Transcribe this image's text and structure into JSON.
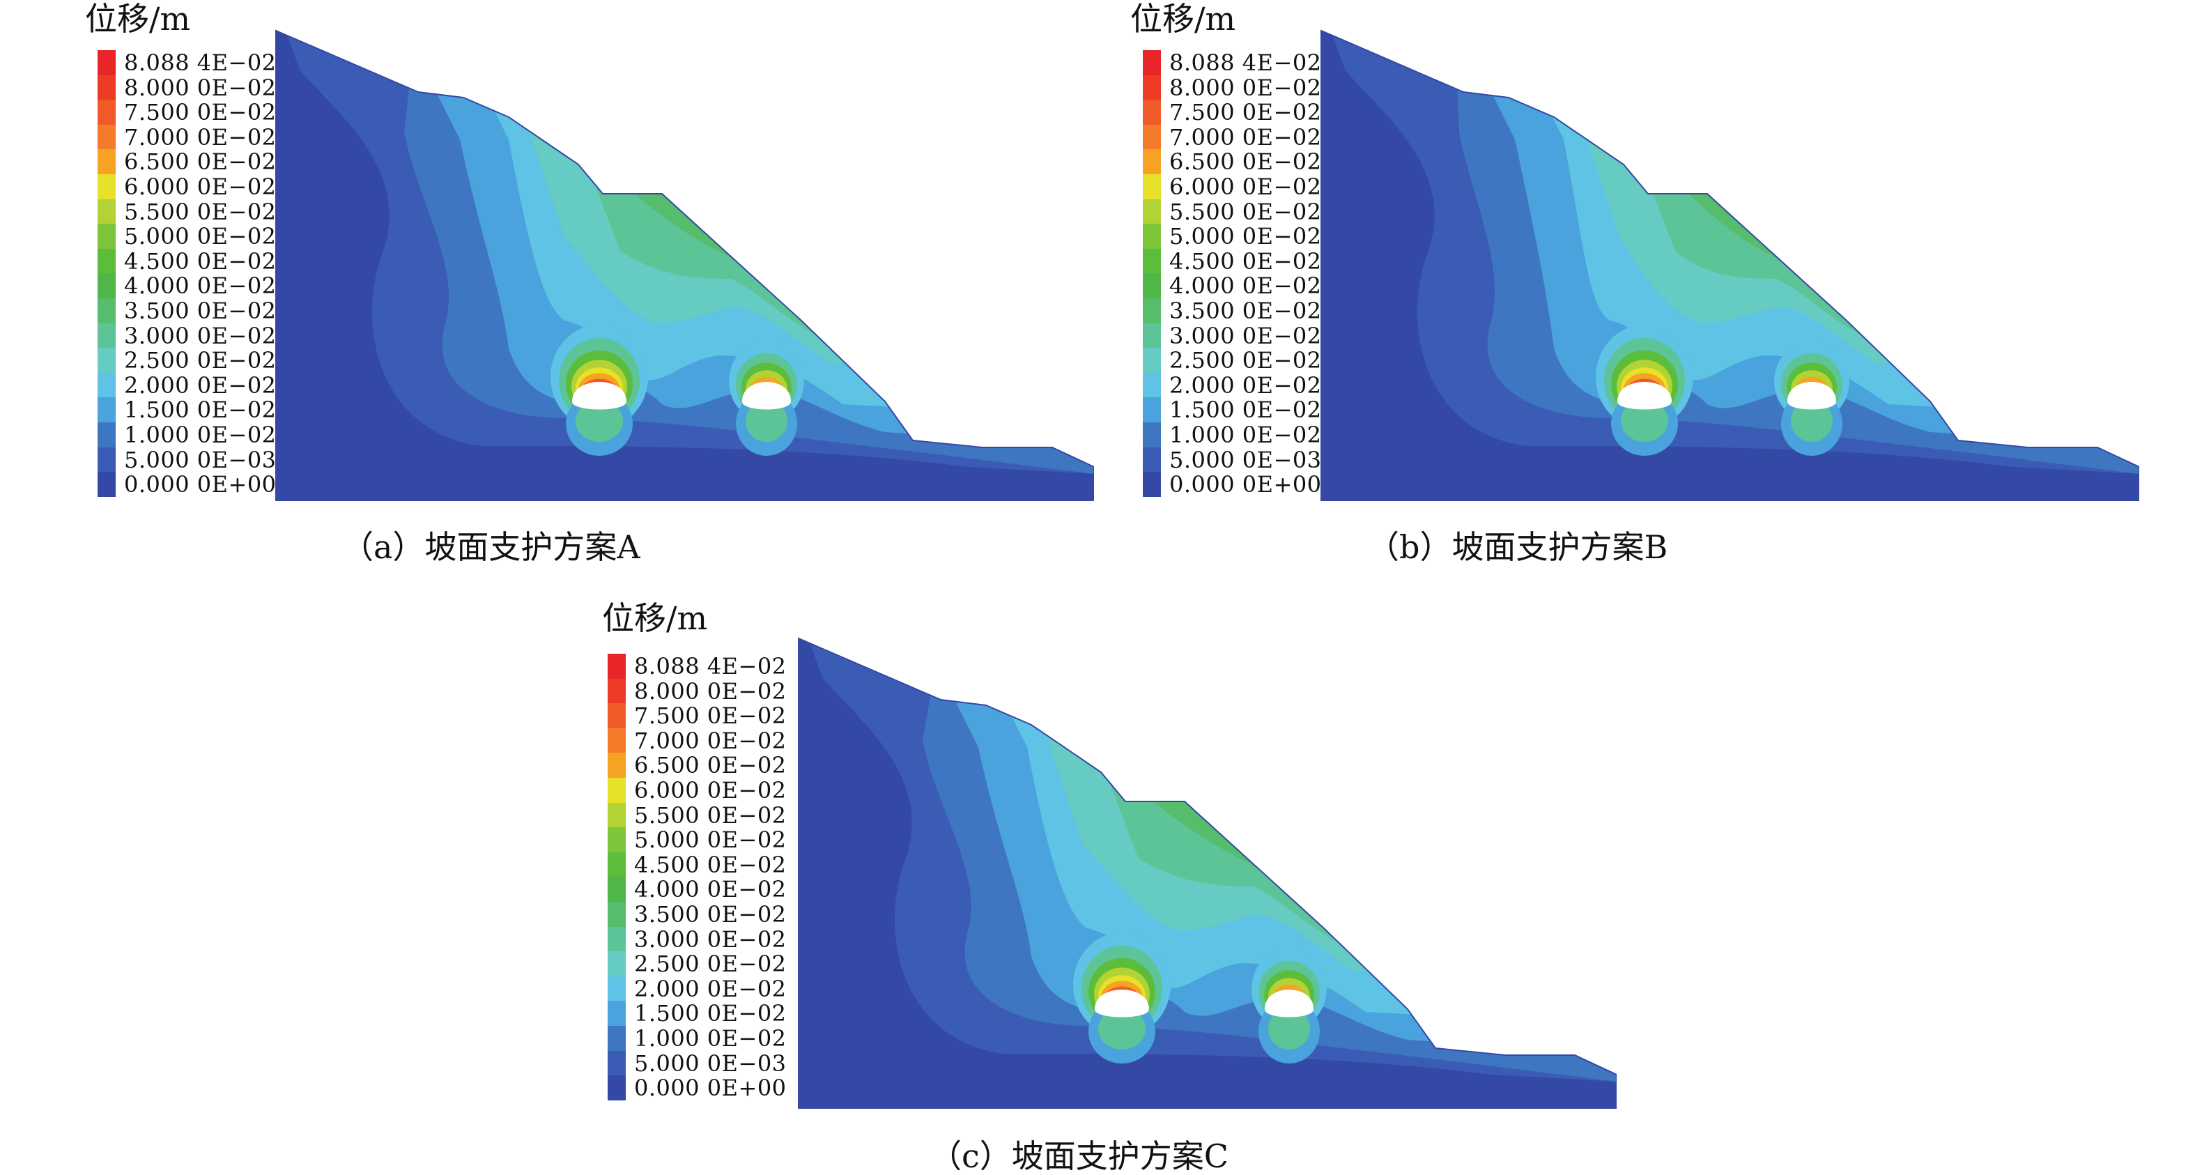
{
  "legend": {
    "title": "位移/m",
    "entries": [
      {
        "label": "8.088 4E−02",
        "color": "#e8262a"
      },
      {
        "label": "8.000 0E−02",
        "color": "#ee3b26"
      },
      {
        "label": "7.500 0E−02",
        "color": "#f05a28"
      },
      {
        "label": "7.000 0E−02",
        "color": "#f47b2a"
      },
      {
        "label": "6.500 0E−02",
        "color": "#f6a323"
      },
      {
        "label": "6.000 0E−02",
        "color": "#e8e12a"
      },
      {
        "label": "5.500 0E−02",
        "color": "#b2d235"
      },
      {
        "label": "5.000 0E−02",
        "color": "#7dc63a"
      },
      {
        "label": "4.500 0E−02",
        "color": "#5bbd3a"
      },
      {
        "label": "4.000 0E−02",
        "color": "#4fb748"
      },
      {
        "label": "3.500 0E−02",
        "color": "#55bd6c"
      },
      {
        "label": "3.000 0E−02",
        "color": "#5cc497"
      },
      {
        "label": "2.500 0E−02",
        "color": "#66cbc2"
      },
      {
        "label": "2.000 0E−02",
        "color": "#5ec3e4"
      },
      {
        "label": "1.500 0E−02",
        "color": "#4aa3dd"
      },
      {
        "label": "1.000 0E−02",
        "color": "#3f76c1"
      },
      {
        "label": "5.000 0E−03",
        "color": "#3b5cb4"
      },
      {
        "label": "0.000 0E+00",
        "color": "#3448a5"
      }
    ]
  },
  "panels": [
    {
      "id": "a",
      "caption": "（a）坡面支护方案A"
    },
    {
      "id": "b",
      "caption": "（b）坡面支护方案B"
    },
    {
      "id": "c",
      "caption": "（c）坡面支护方案C"
    }
  ]
}
